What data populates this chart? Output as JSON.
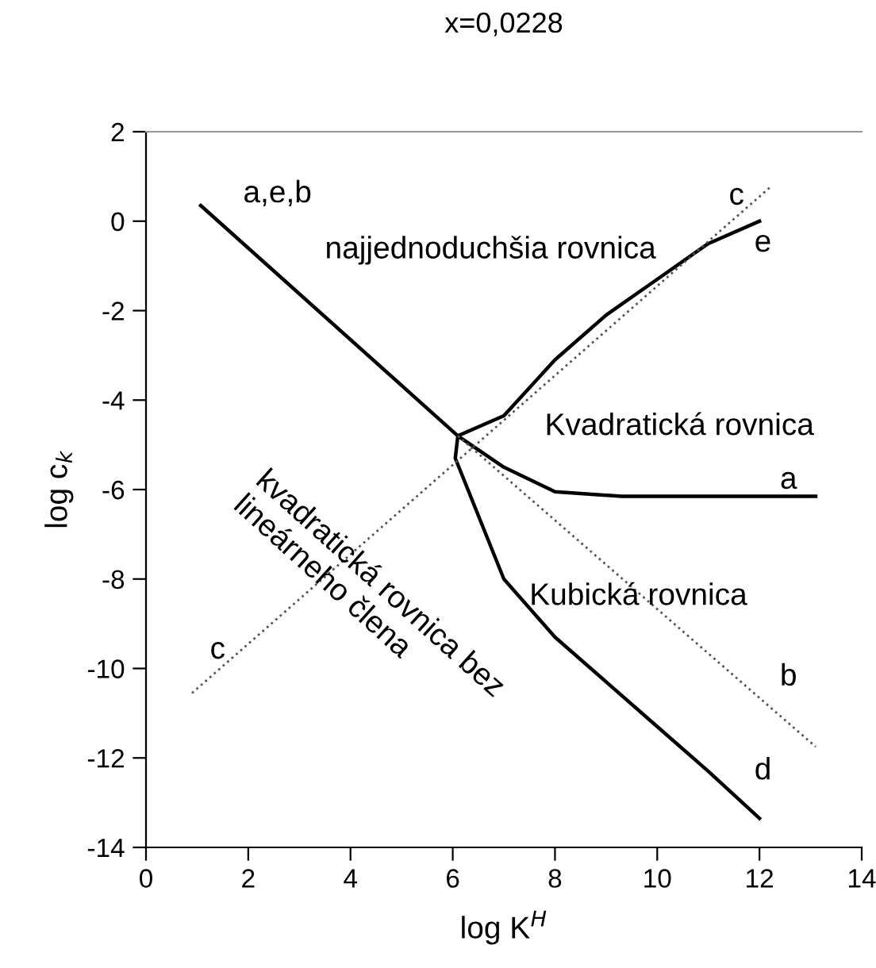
{
  "chart_data": {
    "type": "line",
    "title": "x=0,0228",
    "xlabel": "log K$^{H}$",
    "ylabel": "log c$_{k}$",
    "xlim": [
      0,
      14
    ],
    "ylim": [
      -14,
      2
    ],
    "xticks": [
      0,
      2,
      4,
      6,
      8,
      10,
      12,
      14
    ],
    "yticks": [
      2,
      0,
      {
        "value": -2,
        "label": "-2"
      },
      {
        "value": -4,
        "label": "-4"
      },
      {
        "value": -6,
        "label": "-6"
      },
      {
        "value": -8,
        "label": "-8"
      },
      {
        "value": -10,
        "label": "-10"
      },
      {
        "value": -12,
        "label": "-12"
      },
      {
        "value": -14,
        "label": "-14"
      }
    ],
    "grid": false,
    "legend": false,
    "marker": "none",
    "series": [
      {
        "color": "#000000",
        "line_style": "solid",
        "x": [
          1.07,
          6.1,
          7,
          8,
          9.3,
          13.1
        ],
        "values": [
          0.35,
          -4.8,
          -5.5,
          -6.05,
          -6.15,
          -6.15
        ]
      },
      {
        "color": "#000000",
        "line_style": "solid",
        "x": [
          6.1,
          7,
          8,
          9,
          10,
          11,
          12
        ],
        "values": [
          -4.8,
          -4.35,
          -3.1,
          -2.1,
          -1.3,
          -0.5,
          0.0
        ]
      },
      {
        "color": "#000000",
        "line_style": "solid",
        "x": [
          6.1,
          6.05,
          7,
          8,
          9,
          10,
          11,
          12
        ],
        "values": [
          -4.8,
          -5.3,
          -8.0,
          -9.3,
          -10.3,
          -11.3,
          -12.3,
          -13.35
        ]
      },
      {
        "color": "#555555",
        "line_style": "dotted",
        "x": [
          6.1,
          13.1
        ],
        "values": [
          -4.8,
          -11.75
        ]
      },
      {
        "color": "#555555",
        "line_style": "dotted",
        "x": [
          0.9,
          12.2
        ],
        "values": [
          -10.55,
          0.75
        ]
      }
    ],
    "annotations": [
      "a,e,b",
      "c",
      "e",
      "a",
      "b",
      "d",
      "c",
      "najjednoduchšia rovnica",
      "Kvadratická rovnica",
      "Kubická rovnica",
      "kvadratická rovnica bez\nlineárneho člena"
    ]
  }
}
